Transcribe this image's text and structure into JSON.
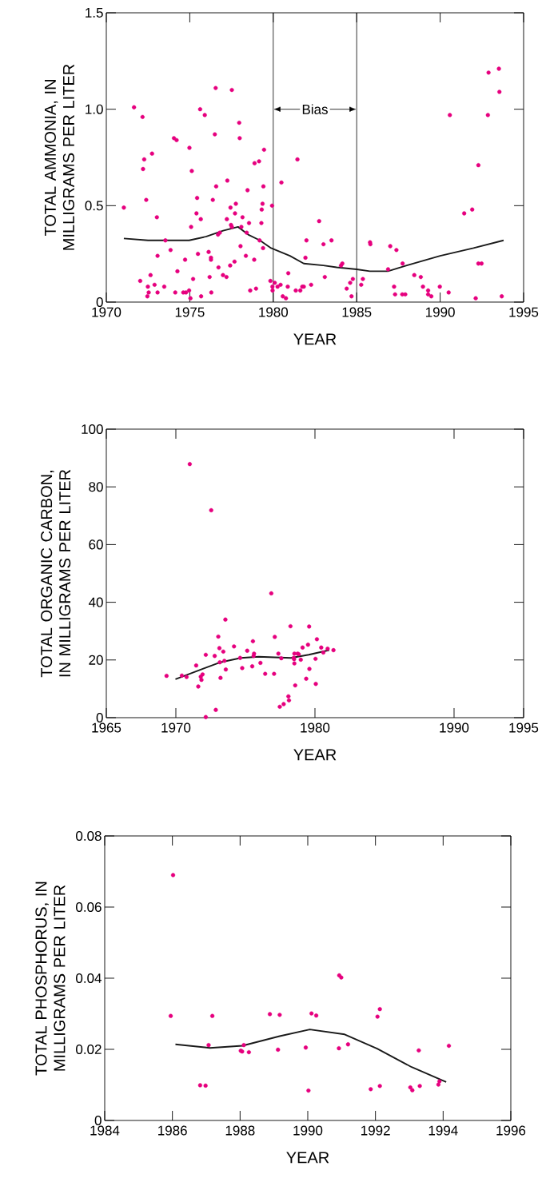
{
  "chart_data": [
    {
      "type": "scatter",
      "xlabel": "YEAR",
      "ylabel": "TOTAL AMMONIA, IN MILLIGRAMS PER LITER",
      "xlim": [
        1970,
        1995
      ],
      "ylim": [
        0,
        1.5
      ],
      "xticks": [
        1970,
        1975,
        1980,
        1985,
        1990,
        1995
      ],
      "yticks": [
        0,
        0.5,
        {
          "value": 1,
          "label": "1.0"
        },
        1.5
      ],
      "ref_lines": [
        {
          "axis": "x",
          "value": 1980
        },
        {
          "axis": "x",
          "value": 1985
        }
      ],
      "annotations": [
        {
          "text": "Bias",
          "x": 1980,
          "y": 1.0
        }
      ],
      "series": [
        {
          "type": "scatter",
          "color": "#e6007e",
          "marker": "circle",
          "x": [
            1971.05,
            1971.66,
            1972.17,
            1972.27,
            1972.2,
            1972.74,
            1972.39,
            1973.03,
            1973.54,
            1973.85,
            1973.07,
            1972.65,
            1972.03,
            1972.49,
            1972.89,
            1972.54,
            1972.46,
            1973.07,
            1973.47,
            1974.05,
            1974.21,
            1974.13,
            1974.26,
            1974.72,
            1974.61,
            1974.77,
            1974.96,
            1975.04,
            1975.2,
            1974.98,
            1975.12,
            1975.08,
            1975.4,
            1975.44,
            1975.66,
            1975.49,
            1975.62,
            1975.9,
            1975.68,
            1976.13,
            1976.27,
            1976.27,
            1976.19,
            1976.29,
            1976.38,
            1976.5,
            1976.55,
            1976.58,
            1976.72,
            1976.69,
            1976.8,
            1976.99,
            1977.2,
            1977.25,
            1977.22,
            1977.42,
            1977.44,
            1977.47,
            1977.52,
            1977.52,
            1977.68,
            1977.71,
            1977.76,
            1977.96,
            1977.99,
            1978.04,
            1978.09,
            1978.16,
            1978.36,
            1978.41,
            1978.46,
            1978.55,
            1978.62,
            1978.86,
            1978.88,
            1978.97,
            1979.15,
            1979.18,
            1979.29,
            1979.31,
            1979.36,
            1979.39,
            1979.41,
            1979.45,
            1979.83,
            1979.93,
            1979.95,
            1979.96,
            1980.09,
            1980.26,
            1980.44,
            1980.49,
            1980.57,
            1980.76,
            1980.87,
            1980.9,
            1981.35,
            1981.45,
            1981.62,
            1981.74,
            1981.83,
            1981.93,
            1981.99,
            1982.27,
            1982.75,
            1983.01,
            1983.49,
            1983.09,
            1984.06,
            1984.14,
            1984.4,
            1984.61,
            1984.77,
            1984.69,
            1985.27,
            1985.37,
            1985.8,
            1985.82,
            1986.88,
            1987.01,
            1987.24,
            1987.3,
            1987.38,
            1987.75,
            1987.73,
            1987.91,
            1988.45,
            1988.84,
            1988.97,
            1989.28,
            1989.28,
            1989.47,
            1989.98,
            1990.51,
            1990.58,
            1991.44,
            1991.92,
            1992.13,
            1992.29,
            1992.29,
            1992.48,
            1992.86,
            1992.9,
            1993.52,
            1993.55,
            1993.69
          ],
          "values": [
            0.49,
            1.01,
            0.96,
            0.74,
            0.69,
            0.77,
            0.53,
            0.44,
            0.32,
            0.27,
            0.24,
            0.14,
            0.11,
            0.08,
            0.09,
            0.05,
            0.03,
            0.05,
            0.08,
            0.85,
            0.84,
            0.05,
            0.16,
            0.22,
            0.05,
            0.05,
            0.06,
            0.02,
            0.12,
            0.8,
            0.68,
            0.39,
            0.46,
            0.54,
            0.43,
            0.25,
            1.0,
            0.97,
            0.03,
            0.26,
            0.23,
            0.22,
            0.13,
            0.05,
            0.53,
            0.87,
            1.11,
            0.6,
            0.18,
            0.35,
            0.36,
            0.14,
            0.13,
            0.63,
            0.43,
            0.19,
            0.49,
            0.4,
            0.39,
            1.1,
            0.21,
            0.46,
            0.51,
            0.93,
            0.85,
            0.29,
            0.39,
            0.44,
            0.24,
            0.36,
            0.58,
            0.41,
            0.06,
            0.22,
            0.72,
            0.07,
            0.73,
            0.32,
            0.41,
            0.48,
            0.51,
            0.28,
            0.6,
            0.79,
            0.11,
            0.5,
            0.08,
            0.06,
            0.1,
            0.08,
            0.09,
            0.62,
            0.03,
            0.02,
            0.08,
            0.15,
            0.06,
            0.74,
            0.06,
            0.08,
            0.08,
            0.23,
            0.32,
            0.09,
            0.42,
            0.3,
            0.32,
            0.13,
            0.19,
            0.2,
            0.07,
            0.1,
            0.12,
            0.03,
            0.09,
            0.12,
            0.31,
            0.3,
            0.17,
            0.29,
            0.08,
            0.04,
            0.27,
            0.2,
            0.04,
            0.04,
            0.14,
            0.13,
            0.08,
            0.06,
            0.04,
            0.03,
            0.08,
            0.05,
            0.97,
            0.46,
            0.48,
            0.02,
            0.71,
            0.2,
            0.2,
            0.97,
            1.19,
            1.21,
            1.09,
            0.03
          ]
        },
        {
          "type": "line",
          "color": "#1a1a1a",
          "line_style": "solid",
          "x": [
            1971.05,
            1972.5,
            1974.96,
            1976,
            1977,
            1977.89,
            1978.5,
            1979.2,
            1979.87,
            1981,
            1981.83,
            1983,
            1983.8,
            1985,
            1985.79,
            1986.87,
            1988,
            1990,
            1992,
            1993.8
          ],
          "values": [
            0.33,
            0.32,
            0.32,
            0.34,
            0.37,
            0.39,
            0.35,
            0.32,
            0.28,
            0.24,
            0.2,
            0.19,
            0.18,
            0.17,
            0.16,
            0.16,
            0.19,
            0.24,
            0.28,
            0.32
          ]
        }
      ]
    },
    {
      "type": "scatter",
      "xlabel": "YEAR",
      "ylabel": "TOTAL ORGANIC CARBON, IN MILLIGRAMS PER LITER",
      "xlim": [
        1965,
        1995
      ],
      "ylim": [
        0,
        100
      ],
      "xticks": [
        1965,
        1970,
        1980,
        1990,
        1995
      ],
      "yticks": [
        0,
        20,
        40,
        60,
        80,
        100
      ],
      "series": [
        {
          "type": "scatter",
          "color": "#e6007e",
          "marker": "circle",
          "x": [
            1971.0,
            1972.54,
            1976.86,
            1973.56,
            1969.33,
            1970.43,
            1970.77,
            1971.46,
            1971.61,
            1971.79,
            1971.92,
            1971.84,
            1972.15,
            1972.15,
            1972.87,
            1972.79,
            1973.05,
            1973.13,
            1973.21,
            1973.16,
            1973.41,
            1973.49,
            1973.59,
            1974.18,
            1974.62,
            1974.77,
            1975.13,
            1975.49,
            1975.54,
            1975.62,
            1975.59,
            1976.08,
            1976.42,
            1977.06,
            1977.11,
            1977.37,
            1977.58,
            1977.47,
            1977.75,
            1978.09,
            1978.13,
            1978.24,
            1978.52,
            1978.47,
            1978.5,
            1978.52,
            1978.58,
            1978.75,
            1978.83,
            1978.98,
            1979.11,
            1979.37,
            1979.5,
            1979.58,
            1979.6,
            1980.04,
            1980.06,
            1980.14,
            1980.45,
            1980.6,
            1980.91,
            1981.33
          ],
          "values": [
            87.9,
            71.9,
            43.1,
            34.0,
            14.5,
            14.6,
            14.1,
            18.1,
            10.8,
            14.2,
            15.0,
            13.1,
            21.8,
            0.2,
            2.7,
            21.4,
            28.1,
            24.1,
            13.8,
            19.2,
            22.9,
            19.7,
            16.7,
            24.7,
            20.7,
            17.2,
            23.2,
            17.8,
            26.5,
            22.2,
            21.4,
            19.0,
            15.2,
            15.2,
            28.0,
            22.2,
            20.6,
            3.8,
            4.7,
            7.4,
            6.0,
            31.7,
            22.2,
            20.7,
            20.3,
            18.8,
            11.2,
            22.2,
            22.0,
            20.1,
            24.3,
            13.5,
            25.3,
            31.6,
            16.9,
            20.4,
            11.7,
            27.2,
            24.3,
            22.6,
            23.9,
            23.4
          ]
        },
        {
          "type": "line",
          "color": "#1a1a1a",
          "line_style": "solid",
          "x": [
            1969.97,
            1973.13,
            1974.67,
            1975.95,
            1978.27,
            1979.55,
            1981.02
          ],
          "values": [
            13.3,
            19.1,
            20.7,
            21.1,
            20.7,
            21.8,
            23.4
          ]
        }
      ]
    },
    {
      "type": "scatter",
      "xlabel": "YEAR",
      "ylabel": "TOTAL PHOSPHORUS, IN MILLIGRAMS PER LITER",
      "xlim": [
        1984,
        1996
      ],
      "ylim": [
        0,
        0.08
      ],
      "xticks": [
        1984,
        1986,
        1988,
        1990,
        1992,
        1994,
        1996
      ],
      "yticks": [
        0,
        0.02,
        0.04,
        0.06,
        0.08
      ],
      "series": [
        {
          "type": "scatter",
          "color": "#e6007e",
          "marker": "circle",
          "x": [
            1986.02,
            1985.95,
            1987.18,
            1987.07,
            1986.82,
            1986.98,
            1988.02,
            1988.06,
            1988.11,
            1988.26,
            1988.88,
            1989.12,
            1989.17,
            1989.94,
            1990.02,
            1990.11,
            1990.25,
            1990.93,
            1990.99,
            1990.92,
            1991.19,
            1991.86,
            1992.06,
            1992.13,
            1992.13,
            1993.03,
            1993.09,
            1993.28,
            1993.31,
            1993.86,
            1993.89,
            1994.17
          ],
          "values": [
            0.069,
            0.0294,
            0.0294,
            0.0212,
            0.0099,
            0.0098,
            0.0196,
            0.0194,
            0.0212,
            0.0192,
            0.0299,
            0.0199,
            0.0297,
            0.0205,
            0.0084,
            0.0301,
            0.0295,
            0.0408,
            0.0402,
            0.0203,
            0.0214,
            0.0088,
            0.0292,
            0.0313,
            0.0097,
            0.0093,
            0.0085,
            0.0197,
            0.0097,
            0.0101,
            0.011,
            0.021
          ]
        },
        {
          "type": "line",
          "color": "#1a1a1a",
          "line_style": "solid",
          "x": [
            1986.09,
            1987.11,
            1988.07,
            1989.17,
            1990.06,
            1991.09,
            1992.05,
            1993.07,
            1994.09
          ],
          "values": [
            0.0214,
            0.0204,
            0.021,
            0.0237,
            0.0256,
            0.0242,
            0.0202,
            0.015,
            0.0108
          ]
        }
      ]
    }
  ]
}
